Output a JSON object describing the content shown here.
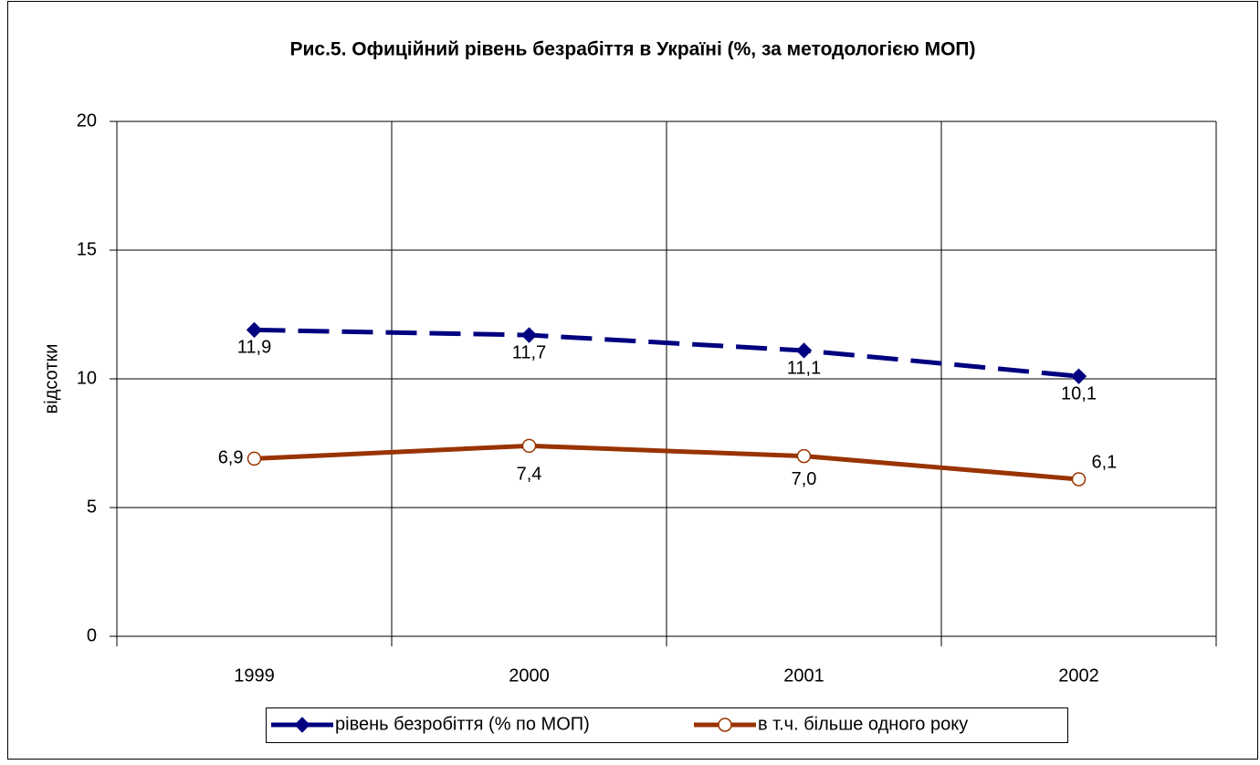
{
  "chart_data": {
    "type": "line",
    "title": "Рис.5. Офиційний рівень безрабіття в Україні (%, за методологією МОП)",
    "y_label": "відсотки",
    "categories": [
      "1999",
      "2000",
      "2001",
      "2002"
    ],
    "series": [
      {
        "name": "рівень безробіття (% по МОП)",
        "color": "#000080",
        "dash": true,
        "marker": "diamond",
        "values": [
          11.9,
          11.7,
          11.1,
          10.1
        ],
        "value_labels": [
          "11,9",
          "11,7",
          "11,1",
          "10,1"
        ]
      },
      {
        "name": "в т.ч. більше одного року",
        "color": "#993300",
        "dash": false,
        "marker": "circle",
        "values": [
          6.9,
          7.4,
          7.0,
          6.1
        ],
        "value_labels": [
          "6,9",
          "7,4",
          "7,0",
          "6,1"
        ]
      }
    ],
    "ylim": [
      0,
      20
    ],
    "yticks": [
      0,
      5,
      10,
      15,
      20
    ],
    "grid": true,
    "legend": "bottom"
  }
}
